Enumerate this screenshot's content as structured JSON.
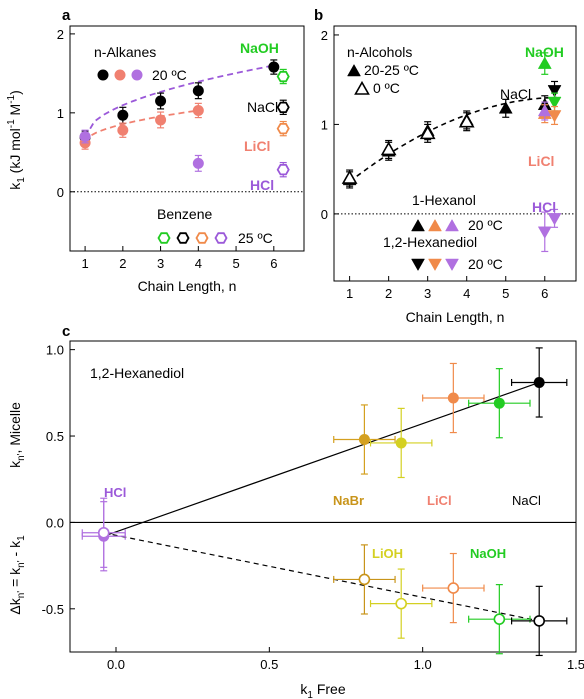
{
  "figure": {
    "panels": [
      "a",
      "b",
      "c"
    ]
  },
  "chart_data": [
    {
      "panel": "a",
      "type": "scatter",
      "xlabel": "Chain Length, n",
      "ylabel": "k1 (kJ mol-1 M-1)",
      "xlim": [
        0.6,
        6.8
      ],
      "ylim": [
        -0.75,
        2.1
      ],
      "xticks": [
        1,
        2,
        3,
        4,
        5,
        6
      ],
      "yticks": [
        0,
        1,
        2
      ],
      "reference_line": 0,
      "legend": {
        "title": "n-Alkanes",
        "marker_label": "20 ºC",
        "marker_colors": [
          "#000000",
          "#f08070",
          "#b070e0"
        ],
        "benzene_title": "Benzene",
        "benzene_label": "25 ºC",
        "benzene_colors": [
          "#22cc22",
          "#000000",
          "#f08a4a",
          "#9b59d9"
        ]
      },
      "labels": [
        {
          "text": "NaOH",
          "color": "#22cc22"
        },
        {
          "text": "NaCl",
          "color": "#000000"
        },
        {
          "text": "LiCl",
          "color": "#f08070"
        },
        {
          "text": "HCl",
          "color": "#9b59d9"
        }
      ],
      "series": [
        {
          "name": "NaCl",
          "color": "#000000",
          "marker": "filled-circle",
          "x": [
            1,
            2,
            3,
            4,
            6
          ],
          "y": [
            0.69,
            0.97,
            1.15,
            1.28,
            1.58
          ],
          "err": [
            0.08,
            0.1,
            0.1,
            0.1,
            0.09
          ]
        },
        {
          "name": "LiCl",
          "color": "#f08070",
          "marker": "filled-circle",
          "x": [
            1,
            2,
            3,
            4
          ],
          "y": [
            0.62,
            0.78,
            0.91,
            1.03
          ],
          "err": [
            0.08,
            0.09,
            0.1,
            0.09
          ]
        },
        {
          "name": "HCl",
          "color": "#b070e0",
          "marker": "filled-circle",
          "x": [
            1,
            4
          ],
          "y": [
            0.7,
            0.36
          ],
          "err": [
            0.08,
            0.1
          ]
        },
        {
          "name": "Benzene NaOH",
          "color": "#22cc22",
          "marker": "open-hexagon",
          "x": [
            6.25
          ],
          "y": [
            1.46
          ],
          "err": [
            0.09
          ]
        },
        {
          "name": "Benzene NaCl",
          "color": "#000000",
          "marker": "open-hexagon",
          "x": [
            6.25
          ],
          "y": [
            1.07
          ],
          "err": [
            0.09
          ]
        },
        {
          "name": "Benzene LiCl",
          "color": "#f08a4a",
          "marker": "open-hexagon",
          "x": [
            6.25
          ],
          "y": [
            0.8
          ],
          "err": [
            0.09
          ]
        },
        {
          "name": "Benzene HCl",
          "color": "#9b59d9",
          "marker": "open-hexagon",
          "x": [
            6.25
          ],
          "y": [
            0.28
          ],
          "err": [
            0.09
          ]
        }
      ],
      "fits": [
        {
          "series": "NaCl",
          "color": "#9b59d9",
          "x": [
            1,
            6
          ],
          "y": [
            0.69,
            1.6
          ]
        },
        {
          "series": "LiCl",
          "color": "#f08070",
          "x": [
            1,
            4
          ],
          "y": [
            0.62,
            1.03
          ]
        }
      ]
    },
    {
      "panel": "b",
      "type": "scatter",
      "xlabel": "Chain Length, n",
      "ylabel": "",
      "xlim": [
        0.6,
        6.8
      ],
      "ylim": [
        -0.75,
        2.1
      ],
      "xticks": [
        1,
        2,
        3,
        4,
        5,
        6
      ],
      "yticks": [
        0,
        1,
        2
      ],
      "reference_line": 0,
      "legend": {
        "title": "n-Alcohols",
        "filled_label": "20-25 ºC",
        "open_label": "0 ºC",
        "hexanol_title": "1-Hexanol",
        "hexanol_label": "20 ºC",
        "hexanediol_title": "1,2-Hexanediol",
        "hexanediol_label": "20 ºC",
        "marker_colors": [
          "#000000",
          "#f08a4a",
          "#b070e0"
        ]
      },
      "labels": [
        {
          "text": "NaOH",
          "color": "#22cc22"
        },
        {
          "text": "NaCl",
          "color": "#000000"
        },
        {
          "text": "LiCl",
          "color": "#f08070"
        },
        {
          "text": "HCl",
          "color": "#9b59d9"
        }
      ],
      "series": [
        {
          "name": "20-25 ºC",
          "color": "#000000",
          "marker": "filled-triangle-up",
          "x": [
            1,
            2,
            3,
            4,
            5,
            6
          ],
          "y": [
            0.38,
            0.7,
            0.93,
            1.05,
            1.18,
            1.22
          ],
          "err": [
            0.09,
            0.1,
            0.1,
            0.1,
            0.1,
            0.1
          ]
        },
        {
          "name": "0 ºC",
          "color": "#000000",
          "marker": "open-triangle-up",
          "x": [
            1,
            2,
            3,
            4
          ],
          "y": [
            0.4,
            0.72,
            0.9,
            1.03
          ],
          "err": [
            0.09,
            0.1,
            0.1,
            0.1
          ]
        },
        {
          "name": "1-Hexanol NaOH",
          "color": "#22cc22",
          "marker": "filled-triangle-up",
          "x": [
            6
          ],
          "y": [
            1.68
          ],
          "err": [
            0.12
          ]
        },
        {
          "name": "1-Hexanol LiCl",
          "color": "#f08a4a",
          "marker": "filled-triangle-up",
          "x": [
            6
          ],
          "y": [
            1.12
          ],
          "err": [
            0.1
          ]
        },
        {
          "name": "1-Hexanol HCl",
          "color": "#b070e0",
          "marker": "filled-triangle-up",
          "x": [
            6
          ],
          "y": [
            1.15
          ],
          "err": [
            0.1
          ]
        },
        {
          "name": "1,2-Hexanediol NaCl",
          "color": "#000000",
          "marker": "filled-triangle-down",
          "x": [
            6.25
          ],
          "y": [
            1.38
          ],
          "err": [
            0.1
          ]
        },
        {
          "name": "1,2-Hexanediol NaOH",
          "color": "#22cc22",
          "marker": "filled-triangle-down",
          "x": [
            6.25
          ],
          "y": [
            1.25
          ],
          "err": [
            0.1
          ]
        },
        {
          "name": "1,2-Hexanediol LiCl",
          "color": "#f08a4a",
          "marker": "filled-triangle-down",
          "x": [
            6.25
          ],
          "y": [
            1.1
          ],
          "err": [
            0.1
          ]
        },
        {
          "name": "1,2-Hexanediol HCl a",
          "color": "#b070e0",
          "marker": "filled-triangle-down",
          "x": [
            6
          ],
          "y": [
            -0.2
          ],
          "err": [
            0.22
          ]
        },
        {
          "name": "1,2-Hexanediol HCl b",
          "color": "#b070e0",
          "marker": "filled-triangle-down",
          "x": [
            6.25
          ],
          "y": [
            -0.05
          ],
          "err": [
            0.1
          ]
        }
      ],
      "fits": [
        {
          "series": "20-25 ºC",
          "color": "#000000",
          "x": [
            1,
            6.3
          ],
          "y": [
            0.36,
            1.3
          ]
        }
      ]
    },
    {
      "panel": "c",
      "type": "scatter",
      "title": "1,2-Hexanediol",
      "xlabel": "k1 Free",
      "ylabel_top": "kn, Micelle",
      "ylabel_bottom": "Δkn, = kn, - k1",
      "xlim": [
        -0.15,
        1.5
      ],
      "ylim": [
        -0.75,
        1.05
      ],
      "xticks": [
        0.0,
        0.5,
        1.0,
        1.5
      ],
      "yticks": [
        -0.5,
        0.0,
        0.5,
        1.0
      ],
      "reference_line": 0,
      "labels": [
        {
          "text": "HCl",
          "color": "#9b59d9"
        },
        {
          "text": "NaBr",
          "color": "#c8941a"
        },
        {
          "text": "LiCl",
          "color": "#f08070"
        },
        {
          "text": "NaCl",
          "color": "#000000"
        },
        {
          "text": "LiOH",
          "color": "#d4d022"
        },
        {
          "text": "NaOH",
          "color": "#22cc22"
        }
      ],
      "series": [
        {
          "name": "Micelle",
          "marker": "filled-circle",
          "points": [
            {
              "label": "HCl",
              "color": "#b070e0",
              "x": -0.04,
              "y": -0.08,
              "xerr": 0.07,
              "yerr": 0.2
            },
            {
              "label": "NaBr",
              "color": "#d4a020",
              "x": 0.81,
              "y": 0.48,
              "xerr": 0.1,
              "yerr": 0.2
            },
            {
              "label": "LiOH",
              "color": "#d4d022",
              "x": 0.93,
              "y": 0.46,
              "xerr": 0.1,
              "yerr": 0.2
            },
            {
              "label": "LiCl",
              "color": "#f08a4a",
              "x": 1.1,
              "y": 0.72,
              "xerr": 0.1,
              "yerr": 0.2
            },
            {
              "label": "NaOH",
              "color": "#22cc22",
              "x": 1.25,
              "y": 0.69,
              "xerr": 0.1,
              "yerr": 0.2
            },
            {
              "label": "NaCl",
              "color": "#000000",
              "x": 1.38,
              "y": 0.81,
              "xerr": 0.09,
              "yerr": 0.2
            }
          ]
        },
        {
          "name": "Delta",
          "marker": "open-circle",
          "points": [
            {
              "label": "HCl",
              "color": "#b070e0",
              "x": -0.04,
              "y": -0.06,
              "xerr": 0.07,
              "yerr": 0.2
            },
            {
              "label": "NaBr",
              "color": "#c8941a",
              "x": 0.81,
              "y": -0.33,
              "xerr": 0.1,
              "yerr": 0.2
            },
            {
              "label": "LiOH",
              "color": "#d4d022",
              "x": 0.93,
              "y": -0.47,
              "xerr": 0.1,
              "yerr": 0.2
            },
            {
              "label": "LiCl",
              "color": "#f08a4a",
              "x": 1.1,
              "y": -0.38,
              "xerr": 0.1,
              "yerr": 0.2
            },
            {
              "label": "NaOH",
              "color": "#22cc22",
              "x": 1.25,
              "y": -0.56,
              "xerr": 0.1,
              "yerr": 0.2
            },
            {
              "label": "NaCl",
              "color": "#000000",
              "x": 1.38,
              "y": -0.57,
              "xerr": 0.09,
              "yerr": 0.2
            }
          ]
        }
      ],
      "fits": [
        {
          "series": "Micelle",
          "style": "solid",
          "color": "#000000",
          "x": [
            -0.04,
            1.38
          ],
          "y": [
            -0.08,
            0.81
          ]
        },
        {
          "series": "Delta",
          "style": "dashed",
          "color": "#000000",
          "x": [
            -0.04,
            1.38
          ],
          "y": [
            -0.06,
            -0.57
          ]
        }
      ]
    }
  ]
}
